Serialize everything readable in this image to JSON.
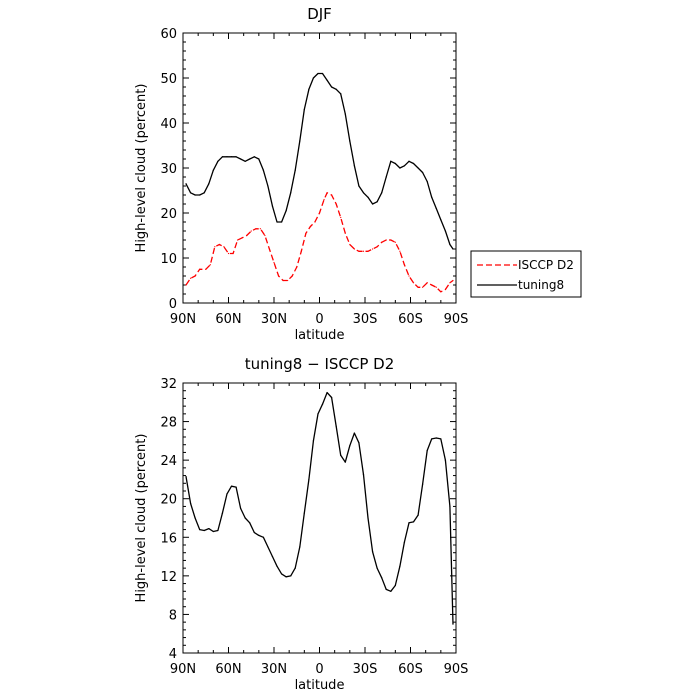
{
  "chart_data": [
    {
      "type": "line",
      "title": "DJF",
      "xlabel": "latitude",
      "ylabel": "High-level cloud (percent)",
      "xlim": [
        -90,
        90
      ],
      "ylim": [
        0,
        60
      ],
      "xticks": [
        {
          "value": -90,
          "label": "90N"
        },
        {
          "value": -60,
          "label": "60N"
        },
        {
          "value": -30,
          "label": "30N"
        },
        {
          "value": 0,
          "label": "0"
        },
        {
          "value": 30,
          "label": "30S"
        },
        {
          "value": 60,
          "label": "60S"
        },
        {
          "value": 90,
          "label": "90S"
        }
      ],
      "yticks": [
        0,
        10,
        20,
        30,
        40,
        50,
        60
      ],
      "legend_position": "right",
      "series": [
        {
          "name": "ISCCP D2",
          "color": "#ff0000",
          "dash": "dashed",
          "x": [
            -88,
            -85,
            -82,
            -79,
            -75,
            -72,
            -69,
            -66,
            -63,
            -60,
            -57,
            -54,
            -51,
            -48,
            -45,
            -42,
            -39,
            -36,
            -33,
            -30,
            -27,
            -24,
            -21,
            -18,
            -15,
            -12,
            -9,
            -6,
            -3,
            0,
            3,
            5,
            8,
            11,
            14,
            17,
            20,
            23,
            26,
            29,
            32,
            35,
            38,
            41,
            44,
            47,
            50,
            53,
            56,
            59,
            62,
            65,
            68,
            71,
            74,
            77,
            80,
            83,
            86,
            88
          ],
          "y": [
            4,
            5.5,
            6,
            7.5,
            7.5,
            8.5,
            12.5,
            13,
            12.5,
            11,
            11,
            14,
            14.5,
            15,
            16,
            16.5,
            16.5,
            15,
            12,
            9,
            6,
            5,
            5,
            6,
            8,
            11.5,
            15.5,
            17,
            18,
            20,
            23,
            24.5,
            24,
            22,
            19,
            15.5,
            13,
            12,
            11.5,
            11.5,
            11.5,
            12,
            12.5,
            13.5,
            14,
            14,
            13.5,
            11.5,
            8.5,
            6,
            4.5,
            3.5,
            3.5,
            4.5,
            4,
            3.5,
            2.5,
            3,
            4.5,
            5
          ]
        },
        {
          "name": "tuning8",
          "color": "#000000",
          "dash": "solid",
          "x": [
            -88,
            -85,
            -82,
            -79,
            -76,
            -73,
            -70,
            -67,
            -64,
            -61,
            -58,
            -55,
            -52,
            -49,
            -46,
            -43,
            -40,
            -37,
            -34,
            -31,
            -28,
            -25,
            -22,
            -19,
            -16,
            -13,
            -10,
            -7,
            -4,
            -1,
            2,
            5,
            8,
            11,
            14,
            17,
            20,
            23,
            26,
            29,
            32,
            35,
            38,
            41,
            44,
            47,
            50,
            53,
            56,
            59,
            62,
            65,
            68,
            71,
            74,
            77,
            80,
            83,
            86,
            88
          ],
          "y": [
            26.5,
            24.5,
            24,
            24,
            24.5,
            26.5,
            29.5,
            31.5,
            32.5,
            32.5,
            32.5,
            32.5,
            32,
            31.5,
            32,
            32.5,
            32,
            29.5,
            26,
            21.5,
            18,
            18,
            20.5,
            24.5,
            29.5,
            36,
            43,
            47.5,
            50,
            51,
            51,
            49.5,
            48,
            47.5,
            46.5,
            42,
            36,
            30.5,
            26,
            24.5,
            23.5,
            22,
            22.5,
            24.5,
            28,
            31.5,
            31,
            30,
            30.5,
            31.5,
            31,
            30,
            29,
            27,
            23.5,
            21,
            18.5,
            16,
            13,
            12
          ]
        }
      ]
    },
    {
      "type": "line",
      "title": "tuning8 − ISCCP D2",
      "xlabel": "latitude",
      "ylabel": "High-level cloud (percent)",
      "xlim": [
        -90,
        90
      ],
      "ylim": [
        4,
        32
      ],
      "xticks": [
        {
          "value": -90,
          "label": "90N"
        },
        {
          "value": -60,
          "label": "60N"
        },
        {
          "value": -30,
          "label": "30N"
        },
        {
          "value": 0,
          "label": "0"
        },
        {
          "value": 30,
          "label": "30S"
        },
        {
          "value": 60,
          "label": "60S"
        },
        {
          "value": 90,
          "label": "90S"
        }
      ],
      "yticks": [
        4,
        8,
        12,
        16,
        20,
        24,
        28,
        32
      ],
      "series": [
        {
          "name": "",
          "color": "#000000",
          "dash": "solid",
          "x": [
            -88,
            -85,
            -82,
            -79,
            -76,
            -73,
            -70,
            -67,
            -64,
            -61,
            -58,
            -55,
            -52,
            -49,
            -46,
            -43,
            -40,
            -37,
            -34,
            -31,
            -28,
            -25,
            -22,
            -19,
            -16,
            -13,
            -10,
            -7,
            -4,
            -1,
            2,
            5,
            8,
            11,
            14,
            17,
            20,
            23,
            26,
            29,
            32,
            35,
            38,
            41,
            44,
            47,
            50,
            53,
            56,
            59,
            62,
            65,
            68,
            71,
            74,
            77,
            80,
            83,
            86,
            88
          ],
          "y": [
            22.3,
            19.5,
            18,
            16.8,
            16.7,
            16.9,
            16.6,
            16.7,
            18.5,
            20.5,
            21.3,
            21.2,
            19,
            18,
            17.5,
            16.5,
            16.2,
            16,
            15,
            14,
            13,
            12.2,
            11.9,
            12,
            12.8,
            15,
            18.5,
            22,
            26,
            28.8,
            29.8,
            31,
            30.5,
            27.5,
            24.5,
            23.8,
            25.5,
            26.8,
            25.8,
            22.5,
            18,
            14.5,
            12.8,
            11.8,
            10.6,
            10.4,
            11,
            13,
            15.5,
            17.5,
            17.6,
            18.3,
            21.5,
            25,
            26.2,
            26.3,
            26.2,
            24,
            19.2,
            7
          ]
        }
      ]
    }
  ]
}
